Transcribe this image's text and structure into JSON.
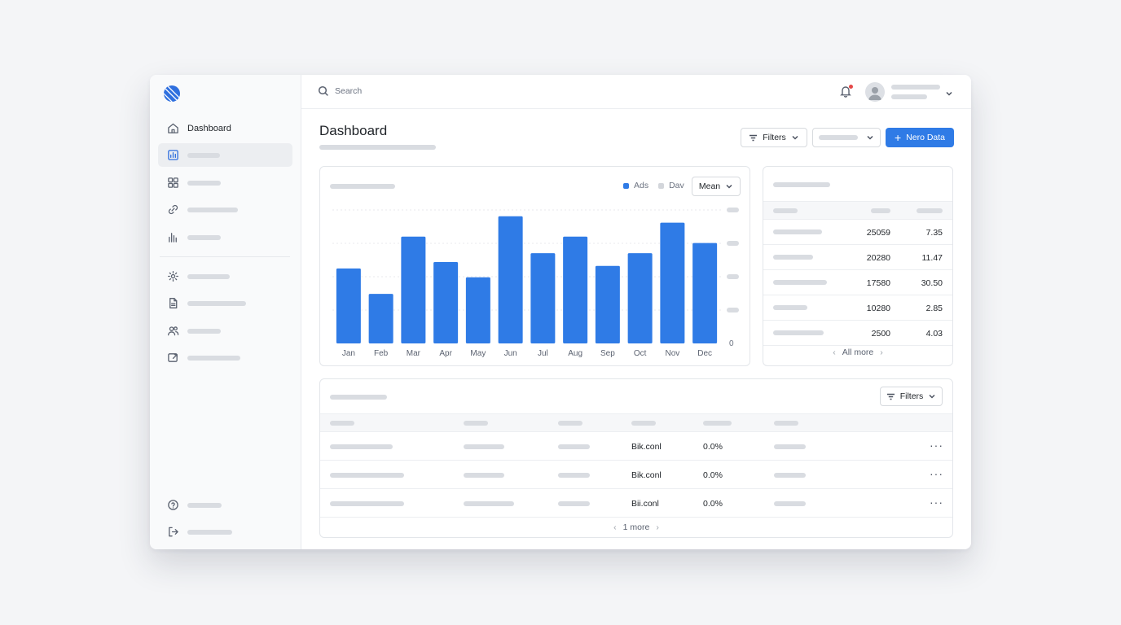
{
  "sidebar": {
    "items": [
      {
        "label": "Dashboard",
        "icon": "home-icon"
      },
      {
        "label": "",
        "icon": "analytics-icon",
        "active": true
      },
      {
        "label": "",
        "icon": "grid-icon"
      },
      {
        "label": "",
        "icon": "link-icon"
      },
      {
        "label": "",
        "icon": "bar-chart-icon"
      },
      {
        "label": "",
        "icon": "gear-icon"
      },
      {
        "label": "",
        "icon": "document-icon"
      },
      {
        "label": "",
        "icon": "users-icon"
      },
      {
        "label": "",
        "icon": "export-icon"
      }
    ],
    "footer": [
      {
        "label": "",
        "icon": "help-icon"
      },
      {
        "label": "",
        "icon": "logout-icon"
      }
    ]
  },
  "topbar": {
    "search_placeholder": "Search",
    "notification_dot_color": "#e54848"
  },
  "page": {
    "title": "Dashboard",
    "filters_label": "Filters",
    "new_data_label": "Nero Data",
    "accent": "#2f7be6"
  },
  "chart_card": {
    "legend": [
      {
        "name": "Ads",
        "color": "#2f7be6"
      },
      {
        "name": "Dav",
        "color": "#d3d6db"
      }
    ],
    "mean_label": "Mean",
    "zero_label": "0"
  },
  "chart_data": {
    "type": "bar",
    "categories": [
      "Jan",
      "Feb",
      "Mar",
      "Apr",
      "May",
      "Jun",
      "Jul",
      "Aug",
      "Sep",
      "Oct",
      "Nov",
      "Dec"
    ],
    "series": [
      {
        "name": "Ads",
        "values": [
          59,
          39,
          84,
          64,
          52,
          100,
          71,
          84,
          61,
          71,
          95,
          79
        ]
      }
    ],
    "ylim": [
      0,
      105
    ],
    "y_tick_labels": [
      "0"
    ],
    "grid": true,
    "legend_placement": "top-right",
    "color": "#2f7be6"
  },
  "stats": {
    "rows": [
      {
        "v1": "25059",
        "v2": "7.35"
      },
      {
        "v1": "20280",
        "v2": "11.47"
      },
      {
        "v1": "17580",
        "v2": "30.50"
      },
      {
        "v1": "10280",
        "v2": "2.85"
      },
      {
        "v1": "2500",
        "v2": "4.03"
      }
    ],
    "footer": "All more"
  },
  "table": {
    "filters_label": "Filters",
    "rows": [
      {
        "col4": "Bik.conl",
        "col5": "0.0%"
      },
      {
        "col4": "Bik.conl",
        "col5": "0.0%"
      },
      {
        "col4": "Bii.conl",
        "col5": "0.0%"
      }
    ],
    "footer": "1 more"
  }
}
